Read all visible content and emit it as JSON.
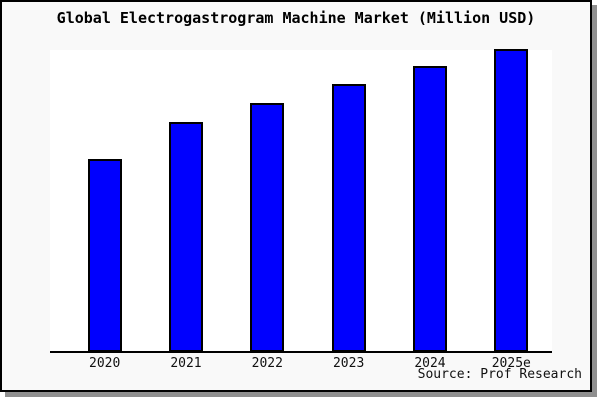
{
  "title": "Global Electrogastrogram Machine Market (Million USD)",
  "source": "Source: Prof Research",
  "colors": {
    "bar_fill": "#0000FE",
    "bar_border": "#000000",
    "plot_background": "#FFFFFF",
    "canvas_background": "#F9F9F9",
    "axis": "#000000",
    "frame_border": "#000000",
    "frame_shadow": "#8F8F8F"
  },
  "chart_data": {
    "type": "bar",
    "title": "Global Electrogastrogram Machine Market (Million USD)",
    "categories": [
      "2020",
      "2021",
      "2022",
      "2023",
      "2024",
      "2025e"
    ],
    "values": [
      63,
      75.3,
      81.7,
      88,
      94,
      100
    ],
    "value_note": "no y-axis or value labels shown in image; values estimated from relative bar heights with 2025e = 100",
    "xlabel": "",
    "ylabel": "",
    "ylim": [
      0,
      100.5
    ],
    "grid": false,
    "legend": "none",
    "source": "Source: Prof Research"
  }
}
